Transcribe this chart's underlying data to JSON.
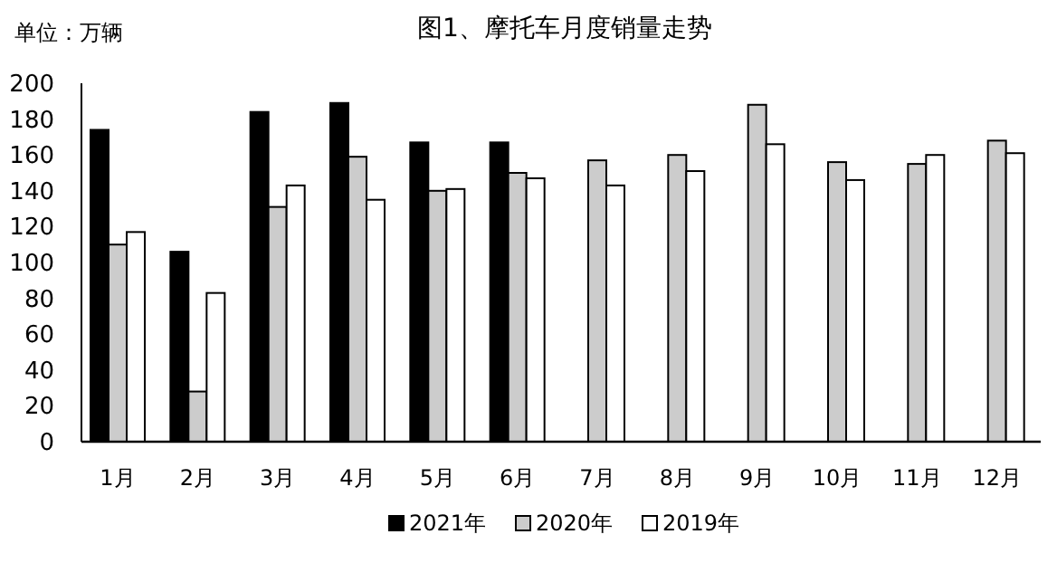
{
  "chart_data": {
    "type": "bar",
    "title": "图1、摩托车月度销量走势",
    "ylabel": "单位：万辆",
    "categories": [
      "1月",
      "2月",
      "3月",
      "4月",
      "5月",
      "6月",
      "7月",
      "8月",
      "9月",
      "10月",
      "11月",
      "12月"
    ],
    "series": [
      {
        "name": "2021年",
        "color": "#000000",
        "values": [
          174,
          106,
          184,
          189,
          167,
          167,
          null,
          null,
          null,
          null,
          null,
          null
        ]
      },
      {
        "name": "2020年",
        "color": "#cccccc",
        "values": [
          110,
          28,
          131,
          159,
          140,
          150,
          157,
          160,
          188,
          156,
          155,
          168
        ]
      },
      {
        "name": "2019年",
        "color": "#ffffff",
        "values": [
          117,
          83,
          143,
          135,
          141,
          147,
          143,
          151,
          166,
          146,
          160,
          161
        ]
      }
    ],
    "ylim": [
      0,
      200
    ],
    "yticks": [
      0,
      20,
      40,
      60,
      80,
      100,
      120,
      140,
      160,
      180,
      200
    ],
    "legend": "bottom"
  }
}
